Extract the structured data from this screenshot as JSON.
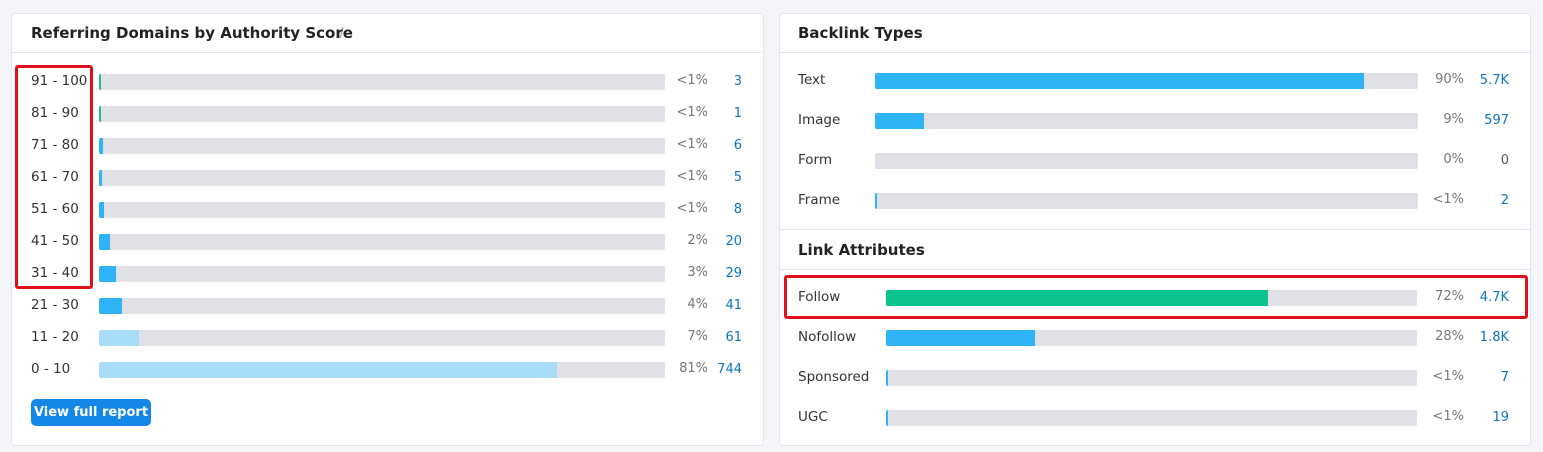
{
  "left_panel": {
    "title": "Referring Domains by Authority Score",
    "rows": [
      {
        "label": "91 - 100",
        "share": {
          "value": 0.4,
          "label": "<1%"
        },
        "count": "3",
        "color": "#1fbf8f"
      },
      {
        "label": "81 - 90",
        "share": {
          "value": 0.3,
          "label": "<1%"
        },
        "count": "1",
        "color": "#1fbf8f"
      },
      {
        "label": "71 - 80",
        "share": {
          "value": 0.7,
          "label": "<1%"
        },
        "count": "6",
        "color": "#2eb3f6"
      },
      {
        "label": "61 - 70",
        "share": {
          "value": 0.6,
          "label": "<1%"
        },
        "count": "5",
        "color": "#2eb3f6"
      },
      {
        "label": "51 - 60",
        "share": {
          "value": 0.9,
          "label": "<1%"
        },
        "count": "8",
        "color": "#2eb3f6"
      },
      {
        "label": "41 - 50",
        "share": {
          "value": 2,
          "label": "2%"
        },
        "count": "20",
        "color": "#2eb3f6"
      },
      {
        "label": "31 - 40",
        "share": {
          "value": 3,
          "label": "3%"
        },
        "count": "29",
        "color": "#2eb3f6"
      },
      {
        "label": "21 - 30",
        "share": {
          "value": 4,
          "label": "4%"
        },
        "count": "41",
        "color": "#2eb3f6"
      },
      {
        "label": "11 - 20",
        "share": {
          "value": 7,
          "label": "7%"
        },
        "count": "61",
        "color": "#a8ddfa"
      },
      {
        "label": "0 - 10",
        "share": {
          "value": 81,
          "label": "81%"
        },
        "count": "744",
        "color": "#a8ddfa"
      }
    ],
    "button": "View full report"
  },
  "right_panel": {
    "sections": [
      {
        "title": "Backlink Types",
        "rows": [
          {
            "label": "Text",
            "share": {
              "value": 90,
              "label": "90%"
            },
            "count": "5.7K",
            "color": "#2eb3f6"
          },
          {
            "label": "Image",
            "share": {
              "value": 9,
              "label": "9%"
            },
            "count": "597",
            "color": "#2eb3f6"
          },
          {
            "label": "Form",
            "share": {
              "value": 0,
              "label": "0%"
            },
            "count": "0",
            "color": "#2eb3f6"
          },
          {
            "label": "Frame",
            "share": {
              "value": 0.4,
              "label": "<1%"
            },
            "count": "2",
            "color": "#2eb3f6"
          }
        ]
      },
      {
        "title": "Link Attributes",
        "rows": [
          {
            "label": "Follow",
            "share": {
              "value": 72,
              "label": "72%"
            },
            "count": "4.7K",
            "color": "#0ac38e"
          },
          {
            "label": "Nofollow",
            "share": {
              "value": 28,
              "label": "28%"
            },
            "count": "1.8K",
            "color": "#2eb3f6"
          },
          {
            "label": "Sponsored",
            "share": {
              "value": 0.4,
              "label": "<1%"
            },
            "count": "7",
            "color": "#2eb3f6"
          },
          {
            "label": "UGC",
            "share": {
              "value": 0.3,
              "label": "<1%"
            },
            "count": "19",
            "color": "#2eb3f6"
          }
        ]
      }
    ]
  }
}
